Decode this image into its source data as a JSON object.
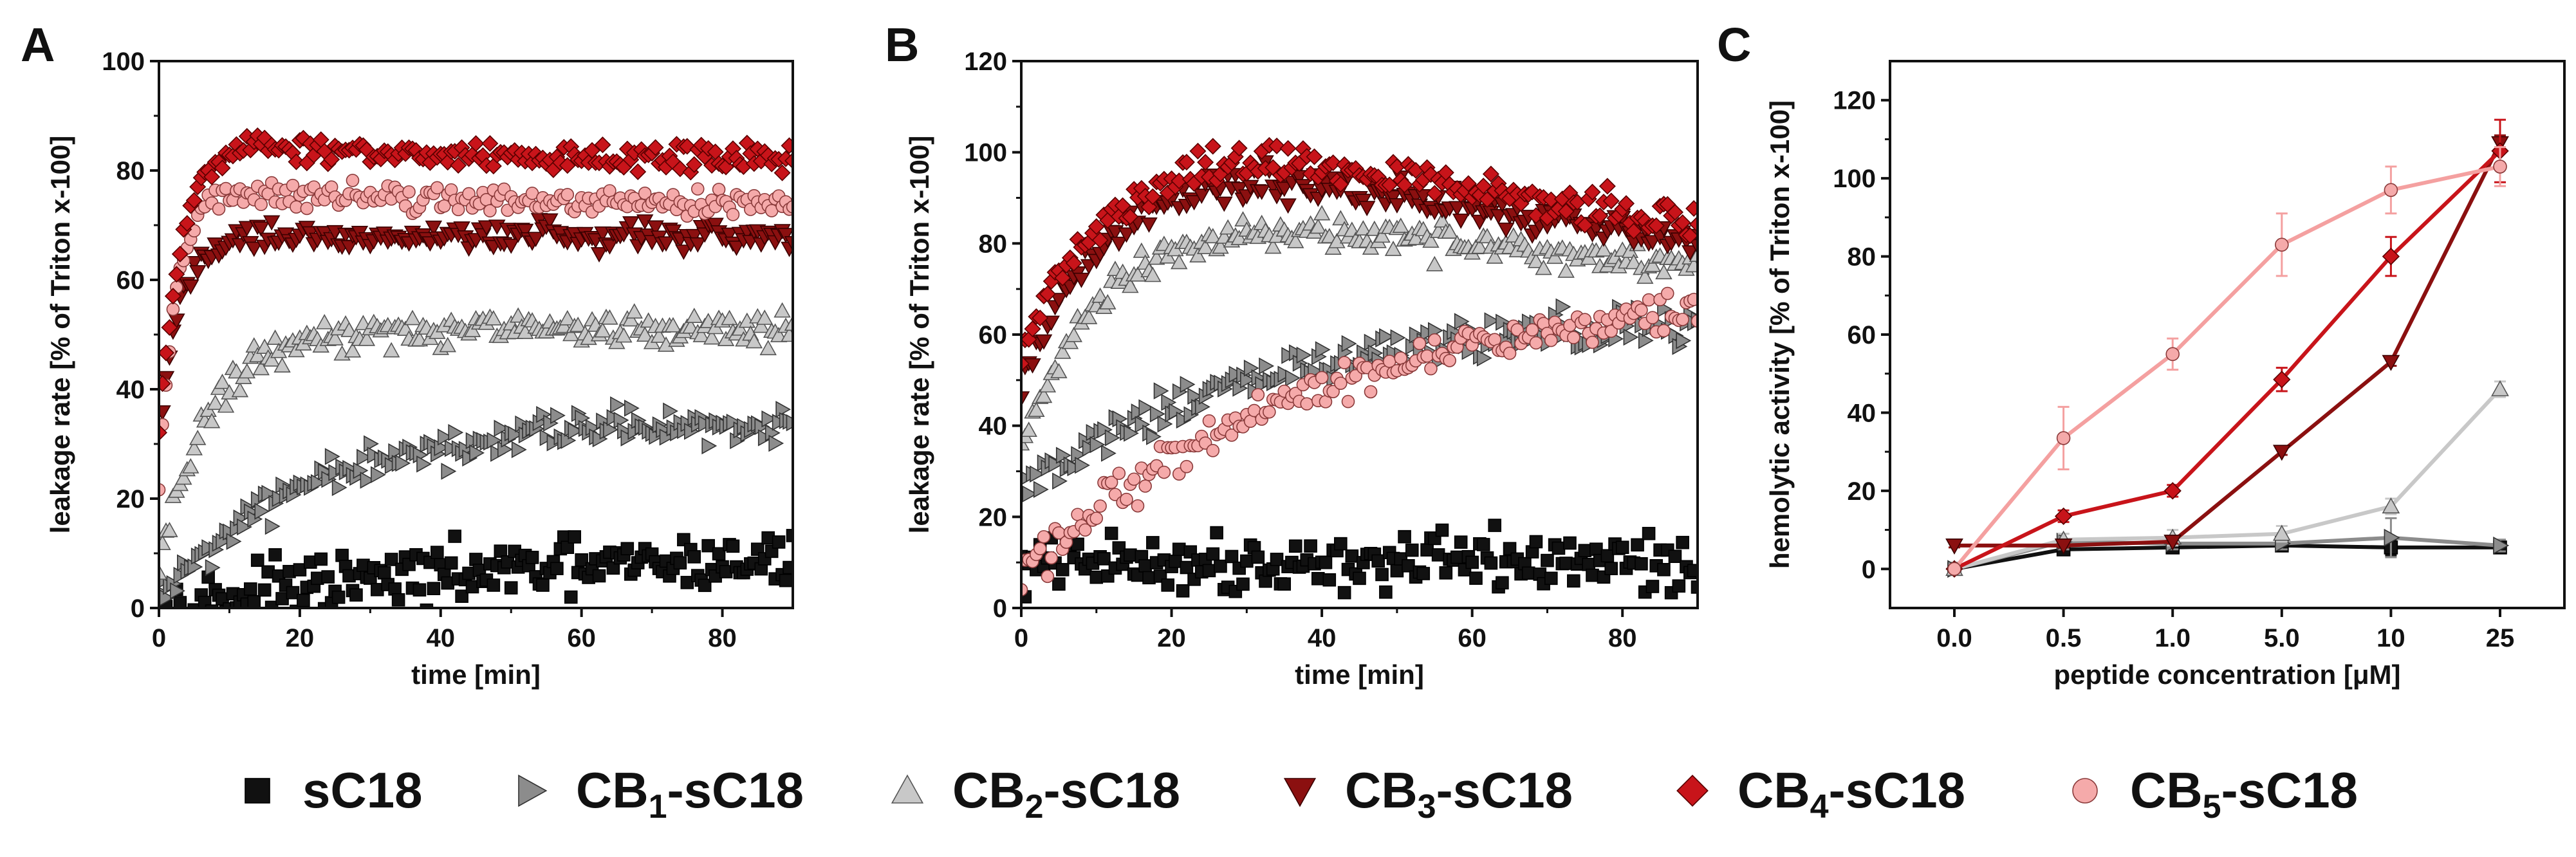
{
  "figure": {
    "legend": [
      {
        "key": "sC18",
        "label": "sC18",
        "prefix": "sC18",
        "sub": "",
        "suffix": "",
        "marker": "square",
        "color": "#111111",
        "stroke": "#000000"
      },
      {
        "key": "CB1",
        "label": "CB1-sC18",
        "prefix": "CB",
        "sub": "1",
        "suffix": "-sC18",
        "marker": "tri-right",
        "color": "#8c8c8c",
        "stroke": "#333333"
      },
      {
        "key": "CB2",
        "label": "CB2-sC18",
        "prefix": "CB",
        "sub": "2",
        "suffix": "-sC18",
        "marker": "tri-up",
        "color": "#c8c8c8",
        "stroke": "#555555"
      },
      {
        "key": "CB3",
        "label": "CB3-sC18",
        "prefix": "CB",
        "sub": "3",
        "suffix": "-sC18",
        "marker": "tri-down",
        "color": "#8b1010",
        "stroke": "#3a0000"
      },
      {
        "key": "CB4",
        "label": "CB4-sC18",
        "prefix": "CB",
        "sub": "4",
        "suffix": "-sC18",
        "marker": "diamond",
        "color": "#c8141a",
        "stroke": "#5a0000"
      },
      {
        "key": "CB5",
        "label": "CB5-sC18",
        "prefix": "CB",
        "sub": "5",
        "suffix": "-sC18",
        "marker": "circle",
        "color": "#f5aaaa",
        "stroke": "#8a3a3a"
      }
    ]
  },
  "chart_data": [
    {
      "panel": "A",
      "type": "scatter",
      "xlabel": "time [min]",
      "ylabel": "leakage rate [% of Triton x-100]",
      "xlim": [
        0,
        90
      ],
      "ylim": [
        0,
        100
      ],
      "xticks": [
        0,
        20,
        40,
        60,
        80
      ],
      "yticks": [
        0,
        20,
        40,
        60,
        80,
        100
      ],
      "x_step_min": 0.5,
      "series": [
        {
          "key": "sC18",
          "name": "sC18",
          "curve": {
            "plateau": 10,
            "tau": 45,
            "start": 0
          },
          "noise": 2.5
        },
        {
          "key": "CB1",
          "name": "CB1-sC18",
          "curve": {
            "plateau": 34,
            "tau": 22,
            "start": 2
          },
          "noise": 1.8
        },
        {
          "key": "CB2",
          "name": "CB2-sC18",
          "curve": {
            "plateau": 51,
            "tau": 7,
            "start": 8
          },
          "noise": 1.5
        },
        {
          "key": "CB3",
          "name": "CB3-sC18",
          "curve": {
            "plateau": 68,
            "tau": 3,
            "start": 33
          },
          "noise": 1.2
        },
        {
          "key": "CB5",
          "name": "CB5-sC18",
          "curve": {
            "plateau": 74,
            "tau": 2.5,
            "start": 22,
            "overshoot": 4,
            "over_tau": 25
          },
          "noise": 1.2
        },
        {
          "key": "CB4",
          "name": "CB4-sC18",
          "curve": {
            "plateau": 82,
            "tau": 3,
            "start": 32,
            "overshoot": 4,
            "over_tau": 25
          },
          "noise": 1.3
        }
      ]
    },
    {
      "panel": "B",
      "type": "scatter",
      "xlabel": "time [min]",
      "ylabel": "leakage rate [% of Triton x-100]",
      "xlim": [
        0,
        90
      ],
      "ylim": [
        0,
        120
      ],
      "xticks": [
        0,
        20,
        40,
        60,
        80
      ],
      "yticks": [
        0,
        20,
        40,
        60,
        80,
        100,
        120
      ],
      "x_step_min": 0.5,
      "series": [
        {
          "key": "sC18",
          "name": "sC18",
          "curve": {
            "plateau": 10,
            "tau": 1,
            "start": 7
          },
          "noise": 3.0
        },
        {
          "key": "CB1",
          "name": "CB1-sC18",
          "curve": {
            "plateau": 64,
            "tau": 30,
            "start": 25
          },
          "noise": 2.0
        },
        {
          "key": "CB5",
          "name": "CB5-sC18",
          "curve": {
            "plateau": 72,
            "tau": 40,
            "start": 8
          },
          "noise": 2.2
        },
        {
          "key": "CB2",
          "name": "CB2-sC18",
          "curve": {
            "plateau": 85,
            "tau": 10,
            "start": 35,
            "drift_end": 75
          },
          "noise": 1.8
        },
        {
          "key": "CB3",
          "name": "CB3-sC18",
          "curve": {
            "plateau": 96,
            "tau": 10,
            "start": 48,
            "drift_end": 80
          },
          "noise": 1.8
        },
        {
          "key": "CB4",
          "name": "CB4-sC18",
          "curve": {
            "plateau": 101,
            "tau": 10,
            "start": 55,
            "drift_end": 84
          },
          "noise": 2.0
        }
      ]
    },
    {
      "panel": "C",
      "type": "line",
      "xlabel": "peptide concentration [μM]",
      "ylabel": "hemolytic activity [% of Triton x-100]",
      "categories": [
        "0.0",
        "0.5",
        "1.0",
        "5.0",
        "10",
        "25"
      ],
      "ylim": [
        -10,
        130
      ],
      "yticks": [
        0,
        20,
        40,
        60,
        80,
        100,
        120
      ],
      "series": [
        {
          "key": "sC18",
          "name": "sC18",
          "values": [
            0,
            5,
            5.5,
            6,
            5.5,
            5.5
          ],
          "errors": [
            0.5,
            1,
            1,
            1,
            2,
            1
          ]
        },
        {
          "key": "CB1",
          "name": "CB1-sC18",
          "values": [
            0,
            7,
            6.5,
            6.5,
            8,
            6
          ],
          "errors": [
            0.5,
            2,
            1.5,
            1.5,
            5,
            1.5
          ]
        },
        {
          "key": "CB2",
          "name": "CB2-sC18",
          "values": [
            0,
            7.5,
            8,
            9,
            16,
            46
          ],
          "errors": [
            0.5,
            1.5,
            2,
            2,
            2,
            2
          ]
        },
        {
          "key": "CB3",
          "name": "CB3-sC18",
          "values": [
            6,
            6,
            7,
            30,
            53,
            109
          ],
          "errors": [
            0.5,
            0.5,
            0.5,
            0.8,
            1,
            2
          ]
        },
        {
          "key": "CB4",
          "name": "CB4-sC18",
          "values": [
            0,
            13.5,
            20,
            48.5,
            80,
            107
          ],
          "errors": [
            0.5,
            1.5,
            1.5,
            3,
            5,
            8
          ]
        },
        {
          "key": "CB5",
          "name": "CB5-sC18",
          "values": [
            0,
            33.5,
            55,
            83,
            97,
            103
          ],
          "errors": [
            1,
            8,
            4,
            8,
            6,
            5
          ]
        }
      ]
    }
  ]
}
